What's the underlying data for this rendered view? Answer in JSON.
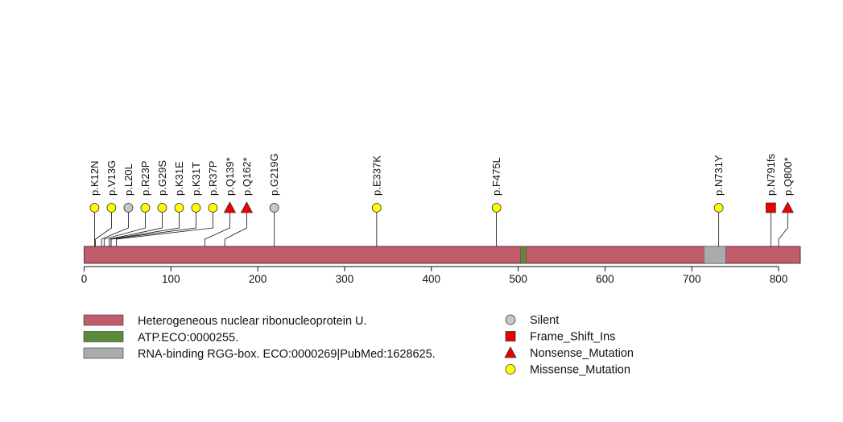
{
  "protein": {
    "length": 825,
    "color": "#C15C6C",
    "domains": [
      {
        "name": "ATP.ECO:0000255.",
        "start": 503,
        "end": 509,
        "color": "#5B8A3A"
      },
      {
        "name": "RNA-binding RGG-box. ECO:0000269|PubMed:1628625.",
        "start": 714,
        "end": 739,
        "color": "#A8ACAC"
      }
    ]
  },
  "axis": {
    "ticks": [
      0,
      100,
      200,
      300,
      400,
      500,
      600,
      700,
      800
    ],
    "tick_labels": [
      "0",
      "100",
      "200",
      "300",
      "400",
      "500",
      "600",
      "700",
      "800"
    ]
  },
  "mutation_types": {
    "Silent": {
      "shape": "circle",
      "color": "#C8C8C8"
    },
    "Frame_Shift_Ins": {
      "shape": "square",
      "color": "#EE0000"
    },
    "Nonsense_Mutation": {
      "shape": "triangle",
      "color": "#EE0000"
    },
    "Missense_Mutation": {
      "shape": "circle",
      "color": "#FFFF00"
    }
  },
  "mutations": [
    {
      "label": "p.K12N",
      "pos": 12,
      "type": "Missense_Mutation"
    },
    {
      "label": "p.V13G",
      "pos": 13,
      "type": "Missense_Mutation"
    },
    {
      "label": "p.L20L",
      "pos": 20,
      "type": "Silent"
    },
    {
      "label": "p.R23P",
      "pos": 23,
      "type": "Missense_Mutation"
    },
    {
      "label": "p.G29S",
      "pos": 29,
      "type": "Missense_Mutation"
    },
    {
      "label": "p.K31E",
      "pos": 31,
      "type": "Missense_Mutation"
    },
    {
      "label": "p.K31T",
      "pos": 31,
      "type": "Missense_Mutation"
    },
    {
      "label": "p.R37P",
      "pos": 37,
      "type": "Missense_Mutation"
    },
    {
      "label": "p.Q139*",
      "pos": 139,
      "type": "Nonsense_Mutation"
    },
    {
      "label": "p.Q162*",
      "pos": 162,
      "type": "Nonsense_Mutation"
    },
    {
      "label": "p.G219G",
      "pos": 219,
      "type": "Silent"
    },
    {
      "label": "p.E337K",
      "pos": 337,
      "type": "Missense_Mutation"
    },
    {
      "label": "p.F475L",
      "pos": 475,
      "type": "Missense_Mutation"
    },
    {
      "label": "p.N731Y",
      "pos": 731,
      "type": "Missense_Mutation"
    },
    {
      "label": "p.N791fs",
      "pos": 791,
      "type": "Frame_Shift_Ins"
    },
    {
      "label": "p.Q800*",
      "pos": 800,
      "type": "Nonsense_Mutation"
    }
  ],
  "legend": {
    "domains": [
      {
        "label": "Heterogeneous nuclear ribonucleoprotein U.",
        "color": "#C15C6C"
      },
      {
        "label": "ATP.ECO:0000255.",
        "color": "#5B8A3A"
      },
      {
        "label": "RNA-binding RGG-box. ECO:0000269|PubMed:1628625.",
        "color": "#A8ACAC"
      }
    ],
    "types": [
      {
        "label": "Silent",
        "shape": "circle",
        "color": "#C8C8C8"
      },
      {
        "label": "Frame_Shift_Ins",
        "shape": "square",
        "color": "#EE0000"
      },
      {
        "label": "Nonsense_Mutation",
        "shape": "triangle",
        "color": "#EE0000"
      },
      {
        "label": "Missense_Mutation",
        "shape": "circle",
        "color": "#FFFF00"
      }
    ]
  }
}
